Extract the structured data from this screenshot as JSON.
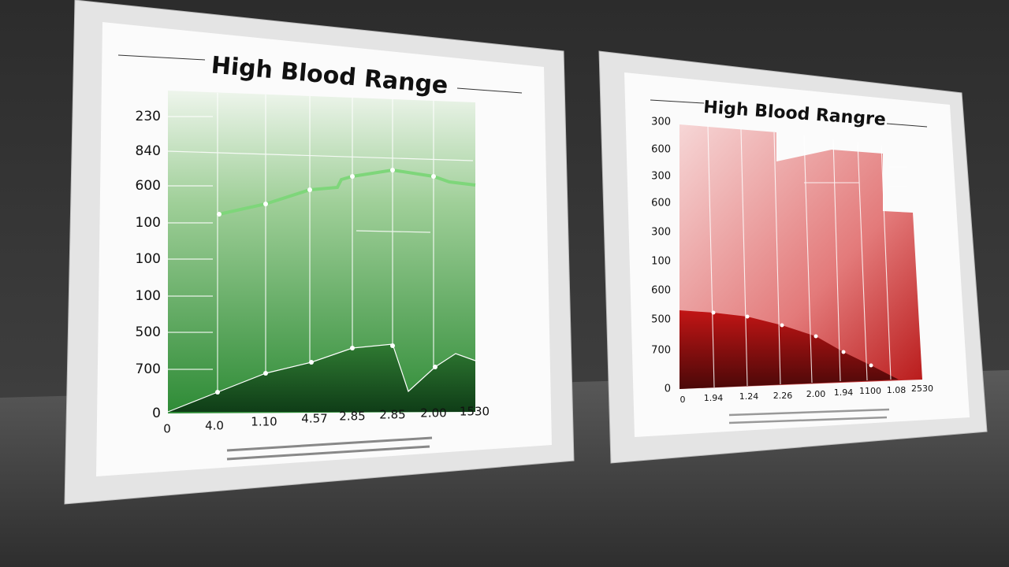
{
  "frames": [
    {
      "title": "High Blood Range",
      "y_labels": [
        "230",
        "840",
        "600",
        "100",
        "100",
        "100",
        "500",
        "700",
        "0"
      ],
      "x_labels": [
        "0",
        "4.0",
        "1.10",
        "4.57",
        "2.85",
        "2.85",
        "2.00",
        "1530"
      ]
    },
    {
      "title": "High Blood Rangre",
      "y_labels": [
        "300",
        "600",
        "300",
        "600",
        "300",
        "100",
        "600",
        "500",
        "700",
        "0"
      ],
      "x_labels": [
        "0",
        "1.94",
        "1.24",
        "2.26",
        "2.00",
        "1.94",
        "1100",
        "1.08",
        "2530"
      ]
    }
  ]
}
